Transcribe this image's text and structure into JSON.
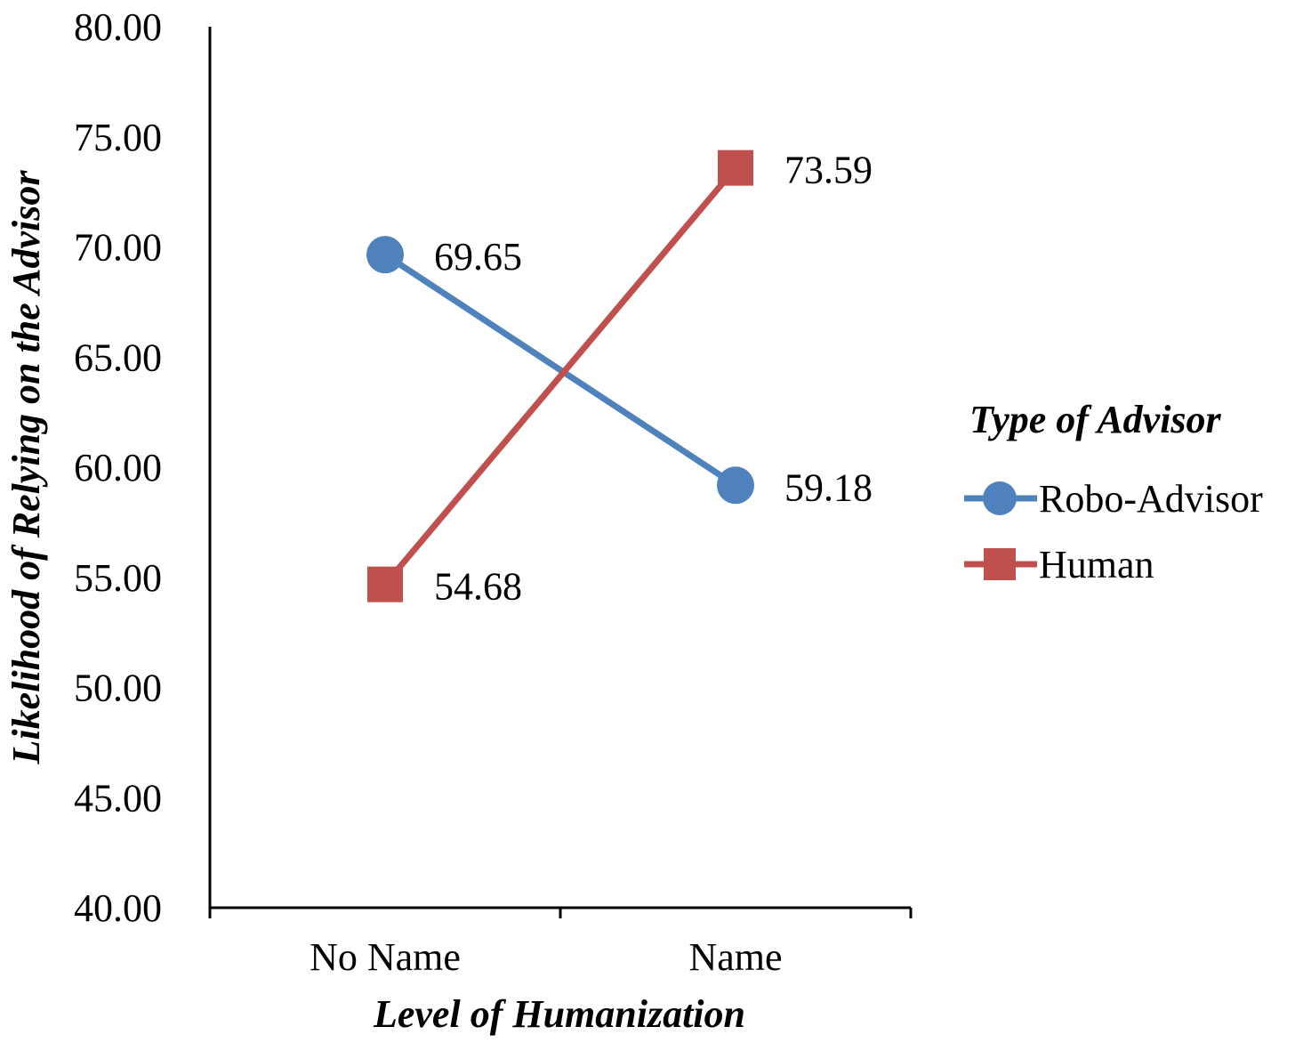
{
  "chart_data": {
    "type": "line",
    "categories": [
      "No Name",
      "Name"
    ],
    "series": [
      {
        "name": "Robo-Advisor",
        "values": [
          69.65,
          59.18
        ],
        "labels": [
          "69.65",
          "59.18"
        ],
        "color": "#4F81BD",
        "marker": "circle"
      },
      {
        "name": "Human",
        "values": [
          54.68,
          73.59
        ],
        "labels": [
          "54.68",
          "73.59"
        ],
        "color": "#C0504D",
        "marker": "square"
      }
    ],
    "xlabel": "Level of Humanization",
    "ylabel": "Likelihood of Relying on the Advisor",
    "ylim": [
      40,
      80
    ],
    "yticks": [
      "40.00",
      "45.00",
      "50.00",
      "55.00",
      "60.00",
      "65.00",
      "70.00",
      "75.00",
      "80.00"
    ],
    "legend": {
      "title": "Type of Advisor",
      "position": "right"
    },
    "grid": false
  }
}
